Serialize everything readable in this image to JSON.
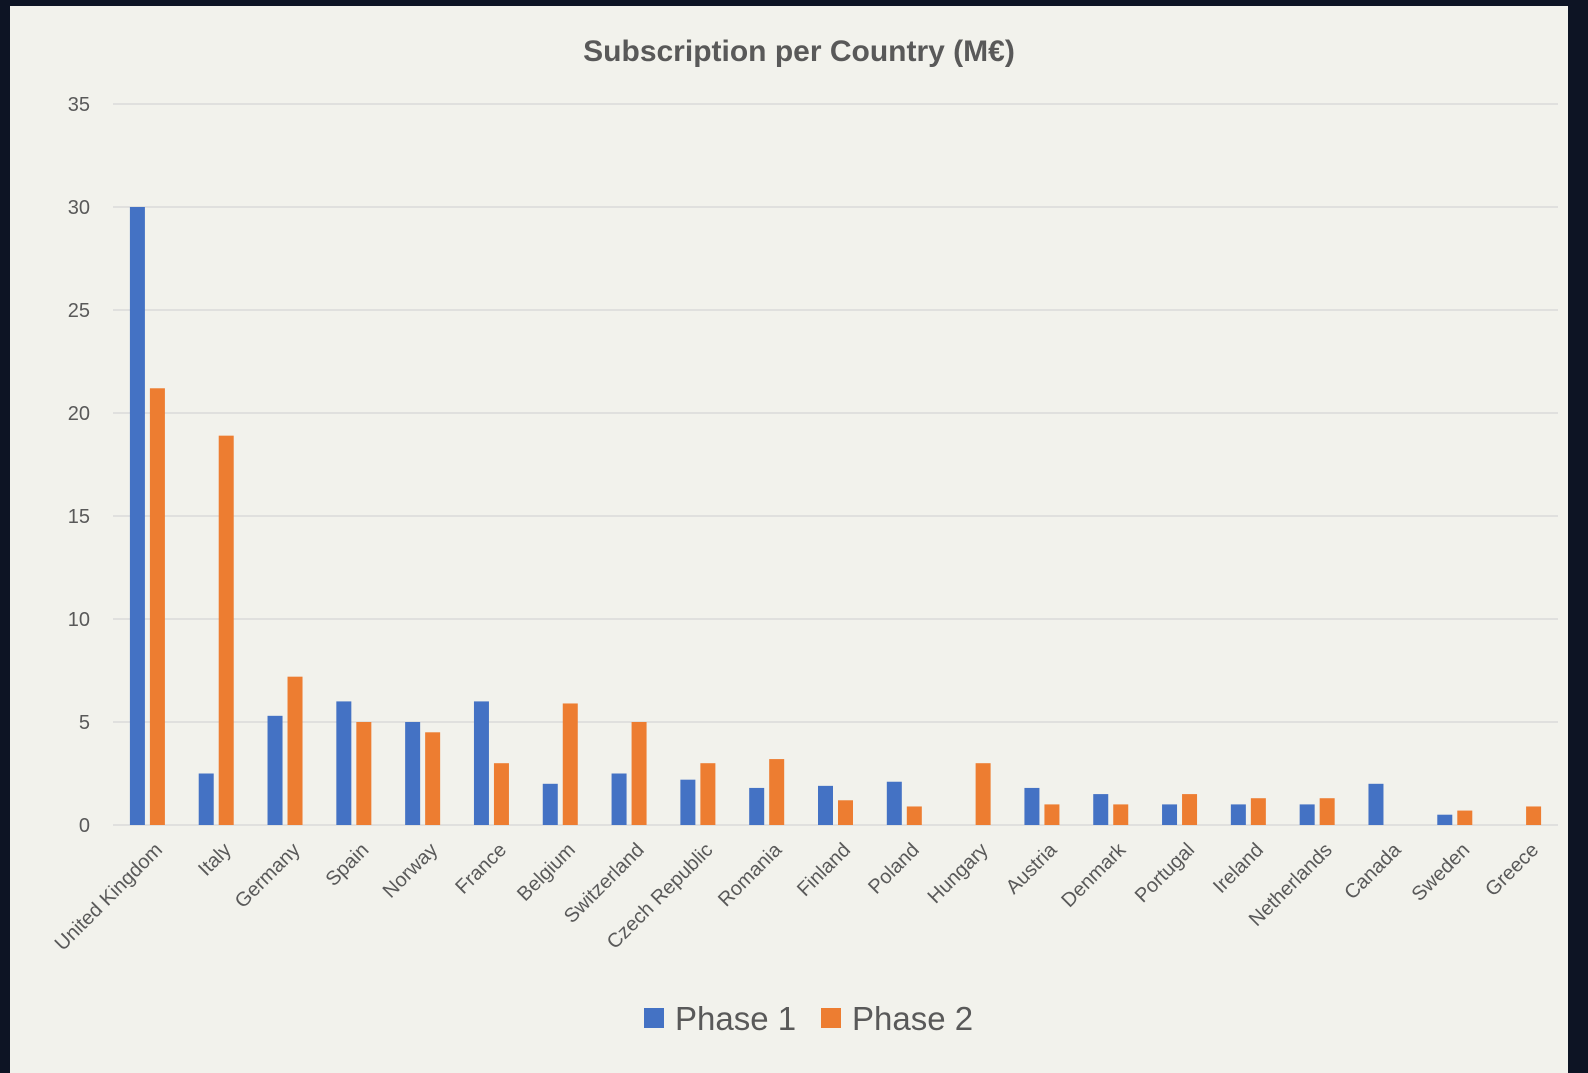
{
  "chart_data": {
    "type": "bar",
    "title": "Subscription per Country (M€)",
    "xlabel": "",
    "ylabel": "",
    "ylim": [
      0,
      35
    ],
    "yticks": [
      0,
      5,
      10,
      15,
      20,
      25,
      30,
      35
    ],
    "grid": true,
    "legend_position": "bottom",
    "categories": [
      "United Kingdom",
      "Italy",
      "Germany",
      "Spain",
      "Norway",
      "France",
      "Belgium",
      "Switzerland",
      "Czech Republic",
      "Romania",
      "Finland",
      "Poland",
      "Hungary",
      "Austria",
      "Denmark",
      "Portugal",
      "Ireland",
      "Netherlands",
      "Canada",
      "Sweden",
      "Greece"
    ],
    "series": [
      {
        "name": "Phase 1",
        "color": "#4472c4",
        "values": [
          30,
          2.5,
          5.3,
          6,
          5,
          6,
          2,
          2.5,
          2.2,
          1.8,
          1.9,
          2.1,
          0,
          1.8,
          1.5,
          1,
          1,
          1,
          2,
          0.5,
          0
        ]
      },
      {
        "name": "Phase 2",
        "color": "#ed7d31",
        "values": [
          21.2,
          18.9,
          7.2,
          5,
          4.5,
          3,
          5.9,
          5,
          3,
          3.2,
          1.2,
          0.9,
          3,
          1,
          1,
          1.5,
          1.3,
          1.3,
          0,
          0.7,
          0.9
        ]
      }
    ]
  }
}
